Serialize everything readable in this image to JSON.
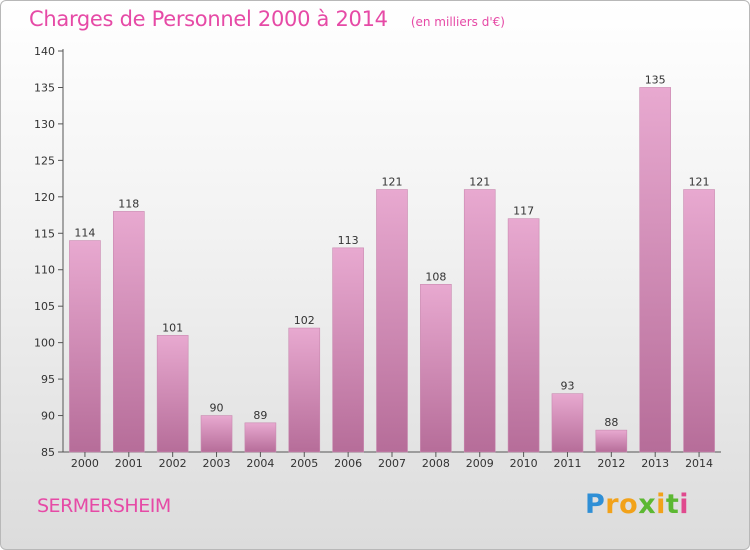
{
  "header": {
    "title": "Charges de Personnel 2000 à 2014",
    "unit": "(en milliers d'€)"
  },
  "footer": {
    "city": "SERMERSHEIM",
    "logo": "Proxiti"
  },
  "colors": {
    "title": "#e64aa6",
    "bar_top": "#e8a9d0",
    "bar_bottom": "#b66d99",
    "axis": "#555555"
  },
  "chart_data": {
    "type": "bar",
    "title": "Charges de Personnel 2000 à 2014",
    "subtitle": "(en milliers d'€)",
    "xlabel": "",
    "ylabel": "",
    "categories": [
      "2000",
      "2001",
      "2002",
      "2003",
      "2004",
      "2005",
      "2006",
      "2007",
      "2008",
      "2009",
      "2010",
      "2011",
      "2012",
      "2013",
      "2014"
    ],
    "values": [
      114,
      118,
      101,
      90,
      89,
      102,
      113,
      121,
      108,
      121,
      117,
      93,
      88,
      135,
      121
    ],
    "ylim": [
      85,
      140
    ],
    "yticks": [
      85,
      90,
      95,
      100,
      105,
      110,
      115,
      120,
      125,
      130,
      135,
      140
    ],
    "grid": false,
    "data_labels": true
  }
}
